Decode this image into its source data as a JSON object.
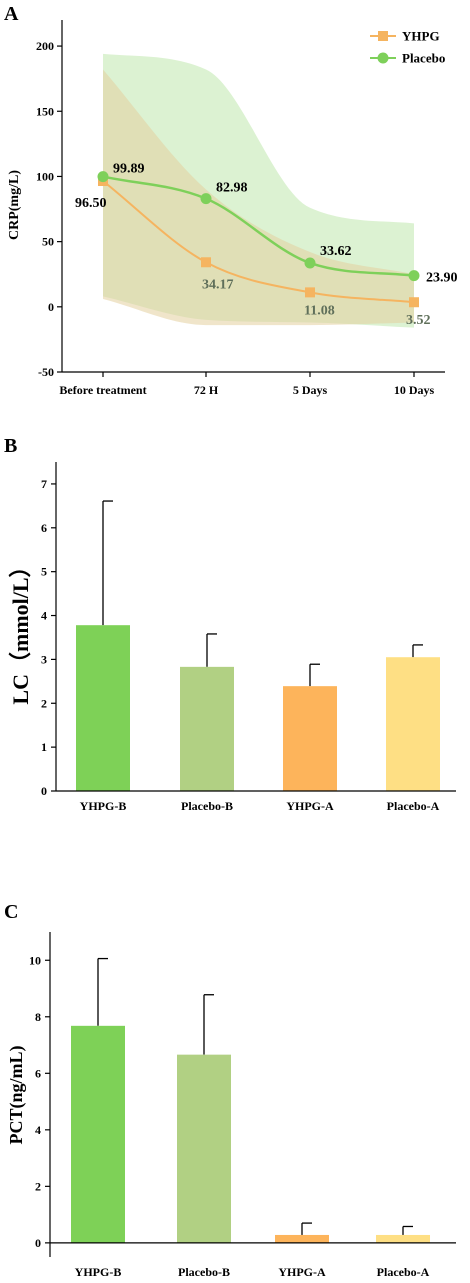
{
  "chart_data": [
    {
      "type": "line",
      "panel": "A",
      "title": "",
      "xlabel": "",
      "ylabel": "CRP(mg/L)",
      "categories": [
        "Before treatment",
        "72 H",
        "5 Days",
        "10 Days"
      ],
      "ylim": [
        -50,
        220
      ],
      "yticks": [
        -50,
        0,
        50,
        100,
        150,
        200
      ],
      "legend_placement": "top-right",
      "series": [
        {
          "name": "YHPG",
          "color": "#f5b460",
          "band_color": "#e3cf9e",
          "values": [
            96.5,
            34.17,
            11.08,
            3.52
          ],
          "upper": [
            182,
            90,
            42,
            25
          ],
          "lower": [
            6,
            -14,
            -14,
            -12
          ],
          "value_labels": [
            "96.50",
            "34.17",
            "11.08",
            "3.52"
          ],
          "marker": "square"
        },
        {
          "name": "Placebo",
          "color": "#7ed05a",
          "band_color": "#bfe8ad",
          "values": [
            99.89,
            82.98,
            33.62,
            23.9
          ],
          "upper": [
            194,
            182,
            76,
            64
          ],
          "lower": [
            8,
            -10,
            -12,
            -16
          ],
          "value_labels": [
            "99.89",
            "82.98",
            "33.62",
            "23.90"
          ],
          "marker": "circle"
        }
      ]
    },
    {
      "type": "bar",
      "panel": "B",
      "title": "",
      "xlabel": "",
      "ylabel": "LC（mmol/L）",
      "categories": [
        "YHPG-B",
        "Placebo-B",
        "YHPG-A",
        "Placebo-A"
      ],
      "values": [
        3.78,
        2.83,
        2.39,
        3.05
      ],
      "errors": [
        2.83,
        0.75,
        0.5,
        0.28
      ],
      "colors": [
        "#7ed157",
        "#b1d083",
        "#fdb45b",
        "#fedf84"
      ],
      "ylim": [
        0,
        7.5
      ],
      "yticks": [
        0,
        1,
        2,
        3,
        4,
        5,
        6,
        7
      ]
    },
    {
      "type": "bar",
      "panel": "C",
      "title": "",
      "xlabel": "",
      "ylabel": "PCT(ng/mL)",
      "categories": [
        "YHPG-B",
        "Placebo-B",
        "YHPG-A",
        "Placebo-A"
      ],
      "values": [
        7.68,
        6.66,
        0.28,
        0.28
      ],
      "errors": [
        2.38,
        2.12,
        0.42,
        0.3
      ],
      "colors": [
        "#7ed157",
        "#b1d083",
        "#fdb45b",
        "#fedf84"
      ],
      "ylim": [
        -0.5,
        11
      ],
      "yticks": [
        0,
        2,
        4,
        6,
        8,
        10
      ]
    }
  ]
}
